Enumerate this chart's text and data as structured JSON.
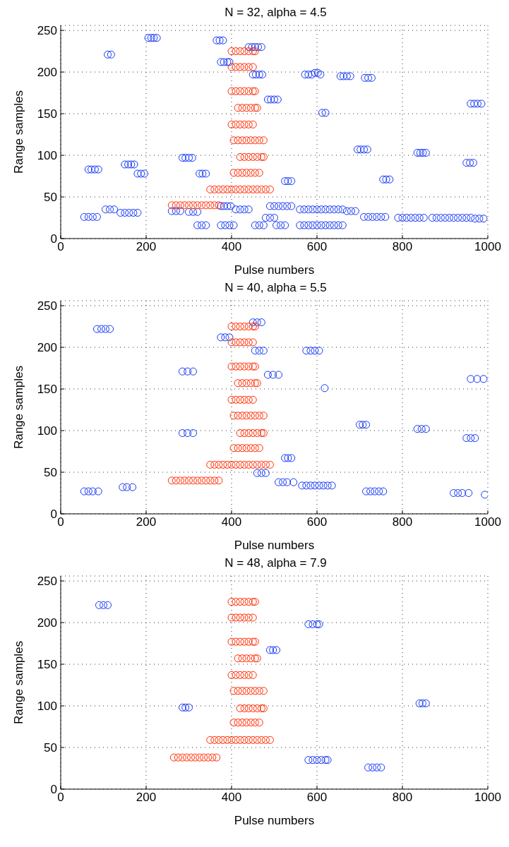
{
  "chart_data": [
    {
      "type": "scatter",
      "title": "N = 32, alpha = 4.5",
      "xlabel": "Pulse numbers",
      "ylabel": "Range samples",
      "xlim": [
        0,
        1000
      ],
      "ylim": [
        0,
        256
      ],
      "xticks": [
        0,
        200,
        400,
        600,
        800,
        1000
      ],
      "yticks": [
        0,
        50,
        100,
        150,
        200,
        250
      ],
      "grid": true,
      "marker": "circle",
      "legend": false,
      "series": [
        {
          "color": "#1437f5",
          "x": [
            205,
            212,
            218,
            225,
            110,
            118,
            365,
            372,
            380,
            440,
            448,
            455,
            462,
            470,
            375,
            382,
            390,
            395,
            450,
            457,
            465,
            472,
            572,
            580,
            588,
            595,
            602,
            608,
            655,
            662,
            670,
            678,
            712,
            720,
            728,
            485,
            492,
            500,
            508,
            960,
            968,
            976,
            985,
            612,
            620,
            695,
            702,
            710,
            718,
            835,
            842,
            848,
            855,
            950,
            958,
            966,
            285,
            292,
            300,
            308,
            65,
            72,
            80,
            88,
            150,
            158,
            165,
            172,
            180,
            188,
            196,
            325,
            332,
            340,
            525,
            532,
            540,
            755,
            762,
            770,
            375,
            382,
            390,
            398,
            490,
            500,
            510,
            520,
            530,
            540,
            560,
            570,
            580,
            590,
            600,
            610,
            620,
            630,
            640,
            650,
            660,
            670,
            680,
            690,
            410,
            420,
            430,
            440,
            260,
            270,
            280,
            300,
            310,
            320,
            105,
            115,
            125,
            140,
            150,
            160,
            170,
            180,
            55,
            65,
            75,
            85,
            480,
            490,
            500,
            710,
            720,
            730,
            740,
            750,
            760,
            790,
            800,
            810,
            820,
            830,
            840,
            850,
            870,
            880,
            890,
            900,
            910,
            920,
            930,
            940,
            950,
            960,
            970,
            980,
            990,
            320,
            330,
            340,
            375,
            385,
            395,
            405,
            455,
            465,
            475,
            505,
            515,
            525,
            560,
            570,
            580,
            590,
            600,
            610,
            620,
            630,
            640,
            650,
            660
          ],
          "values": [
            241,
            241,
            241,
            241,
            221,
            221,
            238,
            238,
            238,
            230,
            230,
            230,
            230,
            230,
            212,
            212,
            212,
            212,
            197,
            197,
            197,
            197,
            197,
            197,
            197,
            199,
            199,
            197,
            195,
            195,
            195,
            195,
            193,
            193,
            193,
            167,
            167,
            167,
            167,
            162,
            162,
            162,
            162,
            151,
            151,
            107,
            107,
            107,
            107,
            103,
            103,
            103,
            103,
            91,
            91,
            91,
            97,
            97,
            97,
            97,
            83,
            83,
            83,
            83,
            89,
            89,
            89,
            89,
            78,
            78,
            78,
            78,
            78,
            78,
            69,
            69,
            69,
            71,
            71,
            71,
            39,
            39,
            39,
            39,
            39,
            39,
            39,
            39,
            39,
            39,
            35,
            35,
            35,
            35,
            35,
            35,
            35,
            35,
            35,
            35,
            35,
            33,
            33,
            33,
            35,
            35,
            35,
            35,
            33,
            33,
            33,
            32,
            32,
            32,
            35,
            35,
            35,
            31,
            31,
            31,
            31,
            31,
            26,
            26,
            26,
            26,
            25,
            25,
            25,
            26,
            26,
            26,
            26,
            26,
            26,
            25,
            25,
            25,
            25,
            25,
            25,
            25,
            25,
            25,
            25,
            25,
            25,
            25,
            25,
            25,
            25,
            25,
            24,
            24,
            24,
            16,
            16,
            16,
            16,
            16,
            16,
            16,
            16,
            16,
            16,
            16,
            16,
            16,
            16,
            16,
            16,
            16,
            16,
            16,
            16,
            16,
            16,
            16,
            16
          ]
        },
        {
          "color": "#ff2a00",
          "x": [
            260,
            270,
            280,
            290,
            300,
            310,
            320,
            330,
            340,
            350,
            360,
            370,
            350,
            360,
            370,
            380,
            390,
            400,
            410,
            420,
            430,
            440,
            450,
            460,
            470,
            480,
            490,
            405,
            415,
            425,
            435,
            445,
            455,
            465,
            420,
            430,
            440,
            450,
            460,
            470,
            475,
            405,
            415,
            425,
            435,
            445,
            455,
            465,
            475,
            400,
            410,
            420,
            430,
            440,
            450,
            415,
            425,
            435,
            445,
            455,
            460,
            400,
            410,
            420,
            430,
            440,
            450,
            455,
            400,
            410,
            420,
            430,
            440,
            450,
            400,
            410,
            420,
            430,
            440,
            450,
            455
          ],
          "values": [
            40,
            40,
            40,
            40,
            40,
            40,
            40,
            40,
            40,
            40,
            40,
            40,
            59,
            59,
            59,
            59,
            59,
            59,
            59,
            59,
            59,
            59,
            59,
            59,
            59,
            59,
            59,
            79,
            79,
            79,
            79,
            79,
            79,
            79,
            98,
            98,
            98,
            98,
            98,
            98,
            98,
            118,
            118,
            118,
            118,
            118,
            118,
            118,
            118,
            137,
            137,
            137,
            137,
            137,
            137,
            157,
            157,
            157,
            157,
            157,
            157,
            177,
            177,
            177,
            177,
            177,
            177,
            177,
            206,
            206,
            206,
            206,
            206,
            206,
            225,
            225,
            225,
            225,
            225,
            225,
            225
          ]
        }
      ]
    },
    {
      "type": "scatter",
      "title": "N = 40, alpha = 5.5",
      "xlabel": "Pulse numbers",
      "ylabel": "Range samples",
      "xlim": [
        0,
        1000
      ],
      "ylim": [
        0,
        256
      ],
      "xticks": [
        0,
        200,
        400,
        600,
        800,
        1000
      ],
      "yticks": [
        0,
        50,
        100,
        150,
        200,
        250
      ],
      "grid": true,
      "marker": "circle",
      "legend": false,
      "series": [
        {
          "color": "#1437f5",
          "x": [
            85,
            95,
            105,
            115,
            450,
            460,
            470,
            375,
            385,
            395,
            455,
            465,
            475,
            575,
            585,
            595,
            605,
            285,
            297,
            310,
            485,
            497,
            510,
            960,
            975,
            990,
            618,
            700,
            707,
            715,
            835,
            845,
            855,
            950,
            960,
            970,
            285,
            297,
            310,
            525,
            532,
            540,
            460,
            470,
            480,
            510,
            520,
            530,
            545,
            565,
            575,
            585,
            595,
            605,
            615,
            625,
            635,
            55,
            65,
            75,
            88,
            145,
            155,
            168,
            715,
            725,
            735,
            745,
            755,
            920,
            930,
            940,
            955,
            993
          ],
          "values": [
            222,
            222,
            222,
            222,
            230,
            230,
            230,
            212,
            212,
            212,
            196,
            196,
            196,
            196,
            196,
            196,
            196,
            171,
            171,
            171,
            167,
            167,
            167,
            162,
            162,
            162,
            151,
            107,
            107,
            107,
            102,
            102,
            102,
            91,
            91,
            91,
            97,
            97,
            97,
            67,
            67,
            67,
            49,
            49,
            49,
            38,
            38,
            38,
            38,
            34,
            34,
            34,
            34,
            34,
            34,
            34,
            34,
            27,
            27,
            27,
            27,
            32,
            32,
            32,
            27,
            27,
            27,
            27,
            27,
            25,
            25,
            25,
            25,
            23
          ]
        },
        {
          "color": "#ff2a00",
          "x": [
            260,
            270,
            280,
            290,
            300,
            310,
            320,
            330,
            340,
            350,
            360,
            370,
            350,
            360,
            370,
            380,
            390,
            400,
            410,
            420,
            430,
            440,
            450,
            460,
            470,
            480,
            490,
            405,
            415,
            425,
            435,
            445,
            455,
            465,
            420,
            430,
            440,
            450,
            460,
            470,
            475,
            405,
            415,
            425,
            435,
            445,
            455,
            465,
            475,
            400,
            410,
            420,
            430,
            440,
            450,
            415,
            425,
            435,
            445,
            455,
            460,
            400,
            410,
            420,
            430,
            440,
            450,
            455,
            400,
            410,
            420,
            430,
            440,
            450,
            400,
            410,
            420,
            430,
            440,
            450,
            455
          ],
          "values": [
            40,
            40,
            40,
            40,
            40,
            40,
            40,
            40,
            40,
            40,
            40,
            40,
            59,
            59,
            59,
            59,
            59,
            59,
            59,
            59,
            59,
            59,
            59,
            59,
            59,
            59,
            59,
            79,
            79,
            79,
            79,
            79,
            79,
            79,
            97,
            97,
            97,
            97,
            97,
            97,
            97,
            118,
            118,
            118,
            118,
            118,
            118,
            118,
            118,
            137,
            137,
            137,
            137,
            137,
            137,
            157,
            157,
            157,
            157,
            157,
            157,
            177,
            177,
            177,
            177,
            177,
            177,
            177,
            206,
            206,
            206,
            206,
            206,
            206,
            225,
            225,
            225,
            225,
            225,
            225,
            225
          ]
        }
      ]
    },
    {
      "type": "scatter",
      "title": "N = 48, alpha = 7.9",
      "xlabel": "Pulse numbers",
      "ylabel": "Range samples",
      "xlim": [
        0,
        1000
      ],
      "ylim": [
        0,
        256
      ],
      "xticks": [
        0,
        200,
        400,
        600,
        800,
        1000
      ],
      "yticks": [
        0,
        50,
        100,
        150,
        200,
        250
      ],
      "grid": true,
      "marker": "circle",
      "legend": false,
      "series": [
        {
          "color": "#1437f5",
          "x": [
            90,
            100,
            110,
            580,
            590,
            600,
            605,
            490,
            497,
            505,
            285,
            292,
            300,
            840,
            847,
            855,
            580,
            590,
            600,
            610,
            620,
            625,
            720,
            730,
            740,
            750
          ],
          "values": [
            221,
            221,
            221,
            198,
            198,
            198,
            198,
            167,
            167,
            167,
            98,
            98,
            98,
            103,
            103,
            103,
            35,
            35,
            35,
            35,
            35,
            35,
            26,
            26,
            26,
            26
          ]
        },
        {
          "color": "#ff2a00",
          "x": [
            265,
            275,
            285,
            295,
            305,
            315,
            325,
            335,
            345,
            355,
            365,
            350,
            360,
            370,
            380,
            390,
            400,
            410,
            420,
            430,
            440,
            450,
            460,
            470,
            480,
            490,
            405,
            415,
            425,
            435,
            445,
            455,
            465,
            420,
            430,
            440,
            450,
            460,
            470,
            475,
            405,
            415,
            425,
            435,
            445,
            455,
            465,
            475,
            400,
            410,
            420,
            430,
            440,
            450,
            415,
            425,
            435,
            445,
            455,
            460,
            400,
            410,
            420,
            430,
            440,
            450,
            455,
            400,
            410,
            420,
            430,
            440,
            450,
            400,
            410,
            420,
            430,
            440,
            450,
            455
          ],
          "values": [
            38,
            38,
            38,
            38,
            38,
            38,
            38,
            38,
            38,
            38,
            38,
            59,
            59,
            59,
            59,
            59,
            59,
            59,
            59,
            59,
            59,
            59,
            59,
            59,
            59,
            59,
            80,
            80,
            80,
            80,
            80,
            80,
            80,
            97,
            97,
            97,
            97,
            97,
            97,
            97,
            118,
            118,
            118,
            118,
            118,
            118,
            118,
            118,
            137,
            137,
            137,
            137,
            137,
            137,
            157,
            157,
            157,
            157,
            157,
            157,
            177,
            177,
            177,
            177,
            177,
            177,
            177,
            206,
            206,
            206,
            206,
            206,
            206,
            225,
            225,
            225,
            225,
            225,
            225,
            225
          ]
        }
      ]
    }
  ]
}
